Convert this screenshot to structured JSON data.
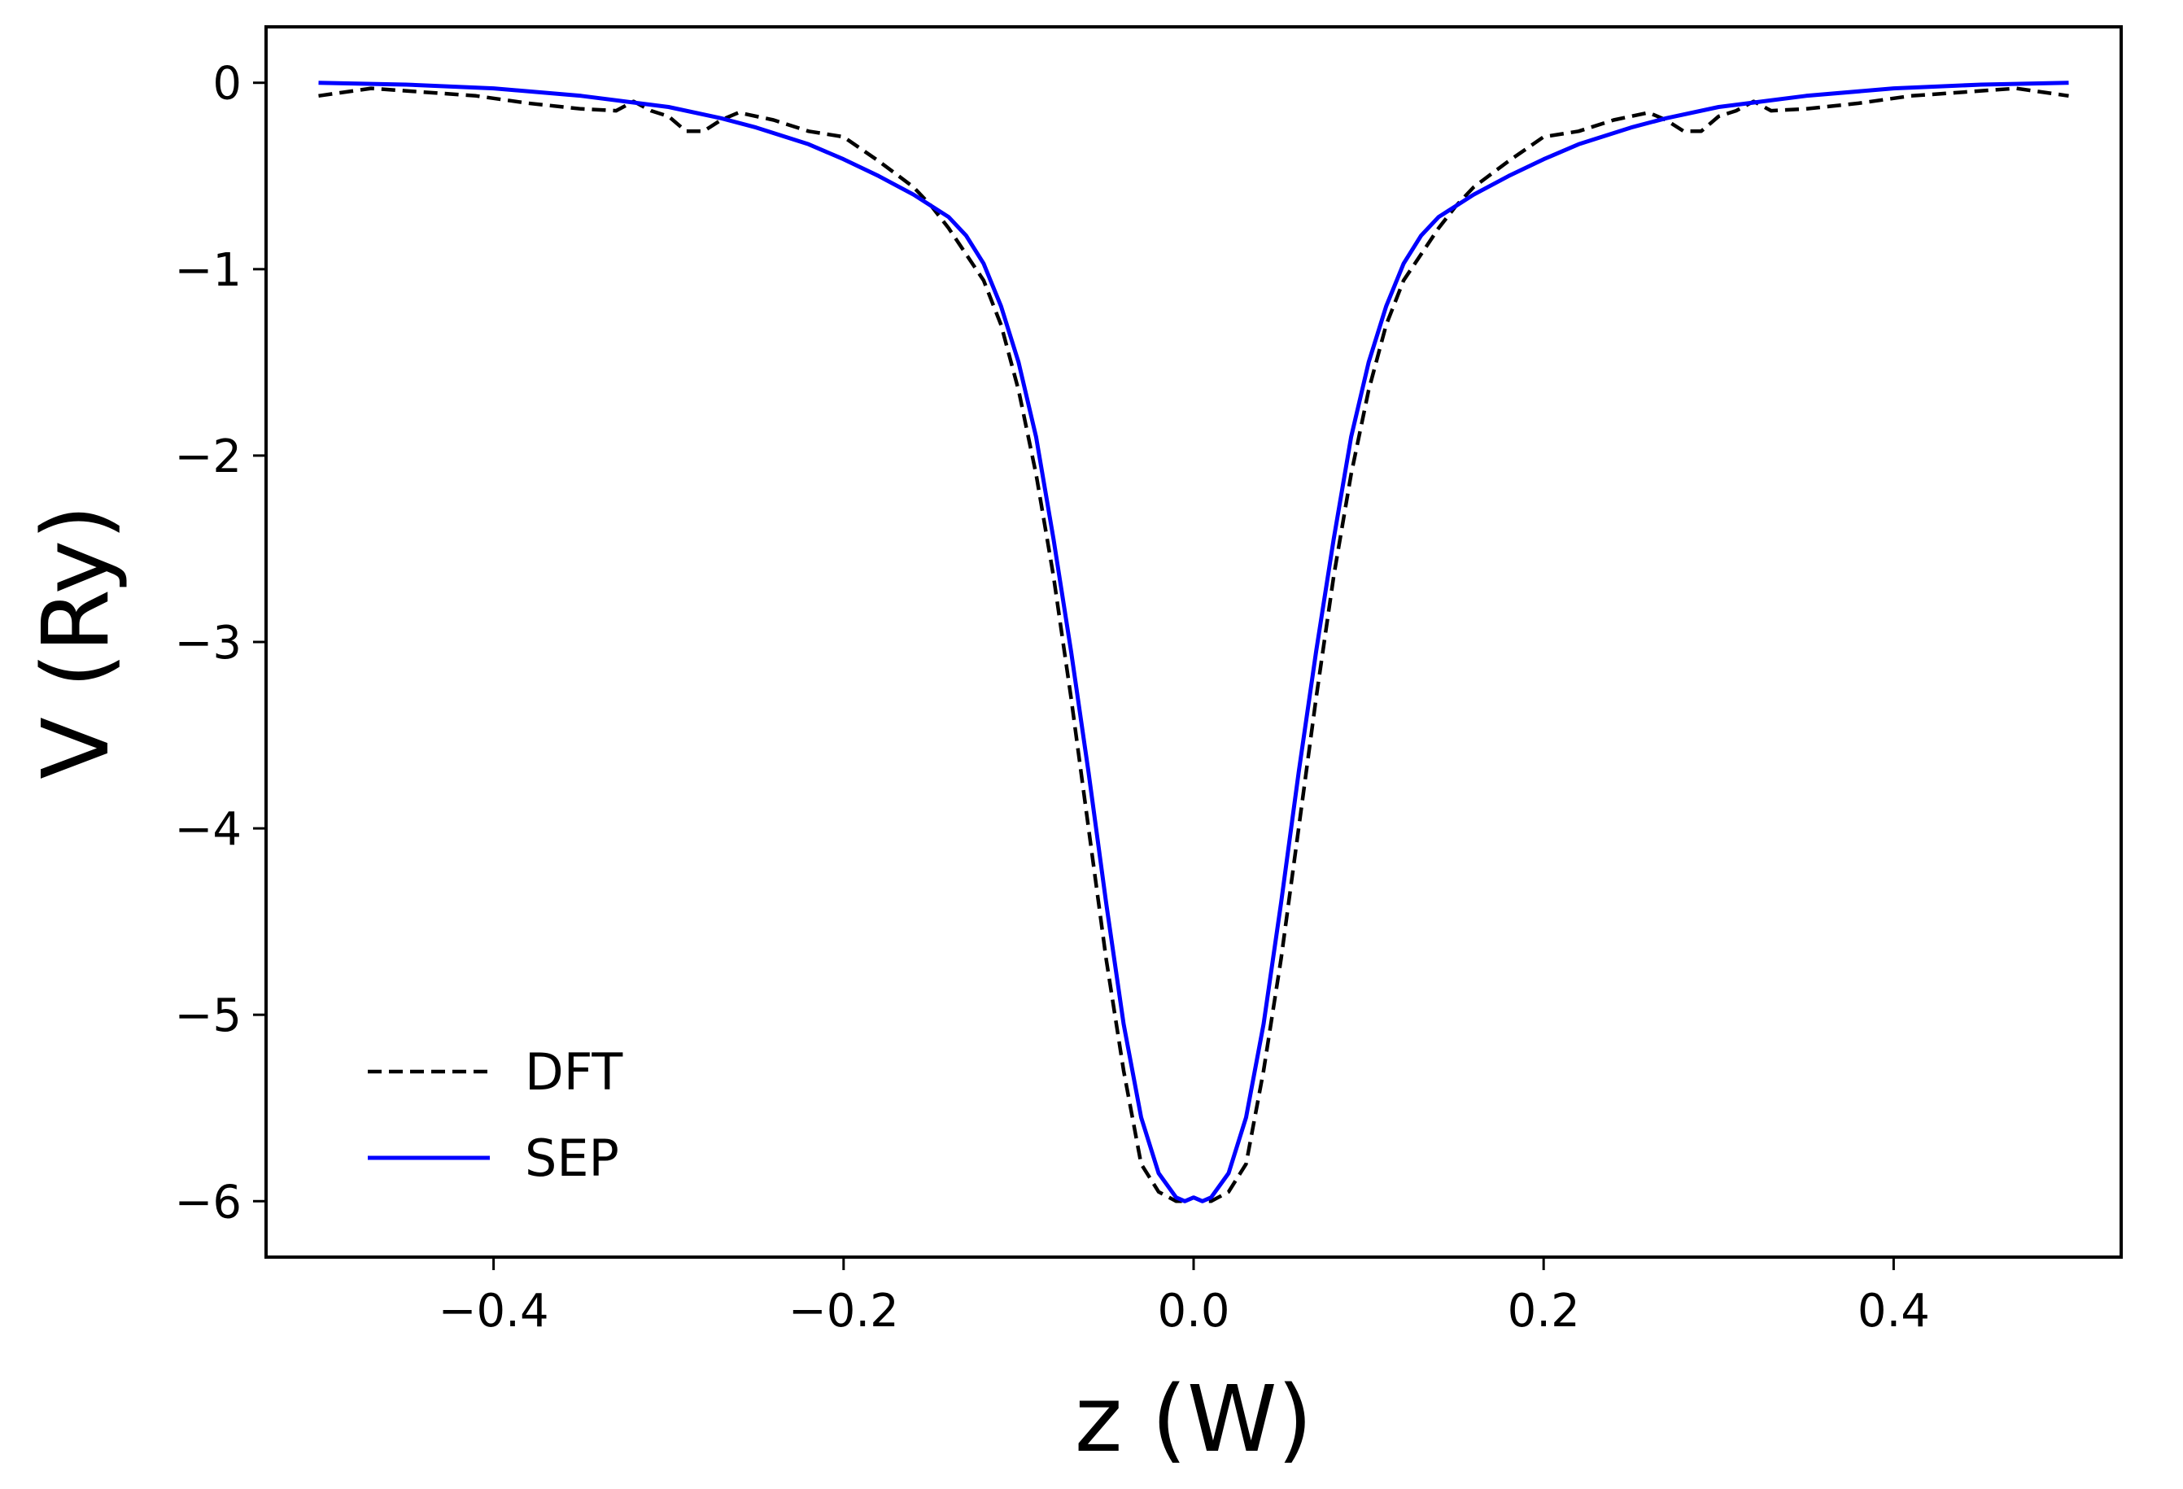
{
  "chart_data": {
    "type": "line",
    "title": "",
    "xlabel": "z (W)",
    "ylabel": "V (Ry)",
    "xlim": [
      -0.53,
      0.53
    ],
    "ylim": [
      -6.3,
      0.3
    ],
    "xticks": [
      -0.4,
      -0.2,
      0.0,
      0.2,
      0.4
    ],
    "xtick_labels": [
      "−0.4",
      "−0.2",
      "0.0",
      "0.2",
      "0.4"
    ],
    "yticks": [
      0,
      -1,
      -2,
      -3,
      -4,
      -5,
      -6
    ],
    "ytick_labels": [
      "0",
      "−1",
      "−2",
      "−3",
      "−4",
      "−5",
      "−6"
    ],
    "grid": false,
    "legend_position": "lower-left",
    "series": [
      {
        "name": "DFT",
        "color": "#000000",
        "style": "dashed",
        "x": [
          -0.5,
          -0.47,
          -0.44,
          -0.41,
          -0.38,
          -0.35,
          -0.33,
          -0.32,
          -0.31,
          -0.3,
          -0.29,
          -0.28,
          -0.27,
          -0.26,
          -0.24,
          -0.22,
          -0.2,
          -0.18,
          -0.16,
          -0.15,
          -0.14,
          -0.13,
          -0.12,
          -0.11,
          -0.1,
          -0.09,
          -0.08,
          -0.07,
          -0.06,
          -0.05,
          -0.04,
          -0.03,
          -0.02,
          -0.01,
          -0.005,
          0.0,
          0.005,
          0.01,
          0.02,
          0.03,
          0.04,
          0.05,
          0.06,
          0.07,
          0.08,
          0.09,
          0.1,
          0.11,
          0.12,
          0.13,
          0.14,
          0.15,
          0.16,
          0.18,
          0.2,
          0.22,
          0.24,
          0.26,
          0.27,
          0.28,
          0.29,
          0.3,
          0.31,
          0.32,
          0.33,
          0.35,
          0.38,
          0.41,
          0.44,
          0.47,
          0.5
        ],
        "y": [
          -0.07,
          -0.03,
          -0.05,
          -0.07,
          -0.11,
          -0.14,
          -0.15,
          -0.1,
          -0.15,
          -0.18,
          -0.26,
          -0.26,
          -0.2,
          -0.16,
          -0.2,
          -0.26,
          -0.29,
          -0.42,
          -0.56,
          -0.66,
          -0.78,
          -0.92,
          -1.06,
          -1.3,
          -1.65,
          -2.1,
          -2.65,
          -3.3,
          -4.0,
          -4.7,
          -5.3,
          -5.8,
          -5.95,
          -6.0,
          -6.0,
          -5.98,
          -6.0,
          -6.0,
          -5.95,
          -5.8,
          -5.3,
          -4.7,
          -4.0,
          -3.3,
          -2.65,
          -2.1,
          -1.65,
          -1.3,
          -1.06,
          -0.92,
          -0.78,
          -0.66,
          -0.56,
          -0.42,
          -0.29,
          -0.26,
          -0.2,
          -0.16,
          -0.2,
          -0.26,
          -0.26,
          -0.18,
          -0.15,
          -0.1,
          -0.15,
          -0.14,
          -0.11,
          -0.07,
          -0.05,
          -0.03,
          -0.07
        ]
      },
      {
        "name": "SEP",
        "color": "#0000ff",
        "style": "solid",
        "x": [
          -0.5,
          -0.45,
          -0.4,
          -0.35,
          -0.3,
          -0.27,
          -0.25,
          -0.22,
          -0.2,
          -0.18,
          -0.16,
          -0.14,
          -0.13,
          -0.12,
          -0.11,
          -0.1,
          -0.09,
          -0.08,
          -0.07,
          -0.06,
          -0.05,
          -0.04,
          -0.03,
          -0.02,
          -0.01,
          -0.005,
          0.0,
          0.005,
          0.01,
          0.02,
          0.03,
          0.04,
          0.05,
          0.06,
          0.07,
          0.08,
          0.09,
          0.1,
          0.11,
          0.12,
          0.13,
          0.14,
          0.16,
          0.18,
          0.2,
          0.22,
          0.25,
          0.27,
          0.3,
          0.35,
          0.4,
          0.45,
          0.5
        ],
        "y": [
          0.0,
          -0.01,
          -0.03,
          -0.07,
          -0.13,
          -0.19,
          -0.24,
          -0.33,
          -0.41,
          -0.5,
          -0.6,
          -0.72,
          -0.82,
          -0.97,
          -1.2,
          -1.5,
          -1.9,
          -2.45,
          -3.05,
          -3.7,
          -4.4,
          -5.05,
          -5.55,
          -5.85,
          -5.98,
          -6.0,
          -5.98,
          -6.0,
          -5.98,
          -5.85,
          -5.55,
          -5.05,
          -4.4,
          -3.7,
          -3.05,
          -2.45,
          -1.9,
          -1.5,
          -1.2,
          -0.97,
          -0.82,
          -0.72,
          -0.6,
          -0.5,
          -0.41,
          -0.33,
          -0.24,
          -0.19,
          -0.13,
          -0.07,
          -0.03,
          -0.01,
          0.0
        ]
      }
    ]
  }
}
